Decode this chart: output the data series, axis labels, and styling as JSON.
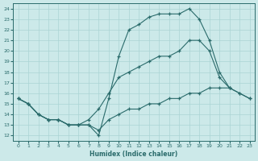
{
  "xlabel": "Humidex (Indice chaleur)",
  "xlim": [
    -0.5,
    23.5
  ],
  "ylim": [
    11.5,
    24.5
  ],
  "yticks": [
    12,
    13,
    14,
    15,
    16,
    17,
    18,
    19,
    20,
    21,
    22,
    23,
    24
  ],
  "xticks": [
    0,
    1,
    2,
    3,
    4,
    5,
    6,
    7,
    8,
    9,
    10,
    11,
    12,
    13,
    14,
    15,
    16,
    17,
    18,
    19,
    20,
    21,
    22,
    23
  ],
  "bg_color": "#cce9e9",
  "line_color": "#2a6b6b",
  "grid_color": "#aad4d4",
  "series": [
    {
      "x": [
        0,
        1,
        2,
        3,
        4,
        5,
        6,
        7,
        8,
        9,
        10,
        11,
        12,
        13,
        14,
        15,
        16,
        17,
        18,
        19,
        20,
        21,
        22,
        23
      ],
      "y": [
        15.5,
        15.0,
        14.0,
        13.5,
        13.5,
        13.0,
        13.0,
        13.0,
        12.0,
        15.5,
        19.5,
        22.0,
        22.5,
        23.2,
        23.5,
        23.5,
        23.5,
        24.0,
        23.0,
        21.0,
        18.0,
        16.5,
        16.0,
        15.5
      ]
    },
    {
      "x": [
        0,
        1,
        2,
        3,
        4,
        5,
        6,
        7,
        8,
        9,
        10,
        11,
        12,
        13,
        14,
        15,
        16,
        17,
        18,
        19,
        20,
        21
      ],
      "y": [
        15.5,
        15.0,
        14.0,
        13.5,
        13.5,
        13.0,
        13.0,
        13.5,
        14.5,
        16.0,
        17.5,
        18.0,
        18.5,
        19.0,
        19.5,
        19.5,
        20.0,
        21.0,
        21.0,
        20.0,
        17.5,
        16.5
      ]
    },
    {
      "x": [
        0,
        1,
        2,
        3,
        4,
        5,
        6,
        7,
        8,
        9,
        10,
        11,
        12,
        13,
        14,
        15,
        16,
        17,
        18,
        19,
        20,
        21,
        22,
        23
      ],
      "y": [
        15.5,
        15.0,
        14.0,
        13.5,
        13.5,
        13.0,
        13.0,
        13.0,
        12.5,
        13.5,
        14.0,
        14.5,
        14.5,
        15.0,
        15.0,
        15.5,
        15.5,
        16.0,
        16.0,
        16.5,
        16.5,
        16.5,
        16.0,
        15.5
      ]
    }
  ]
}
